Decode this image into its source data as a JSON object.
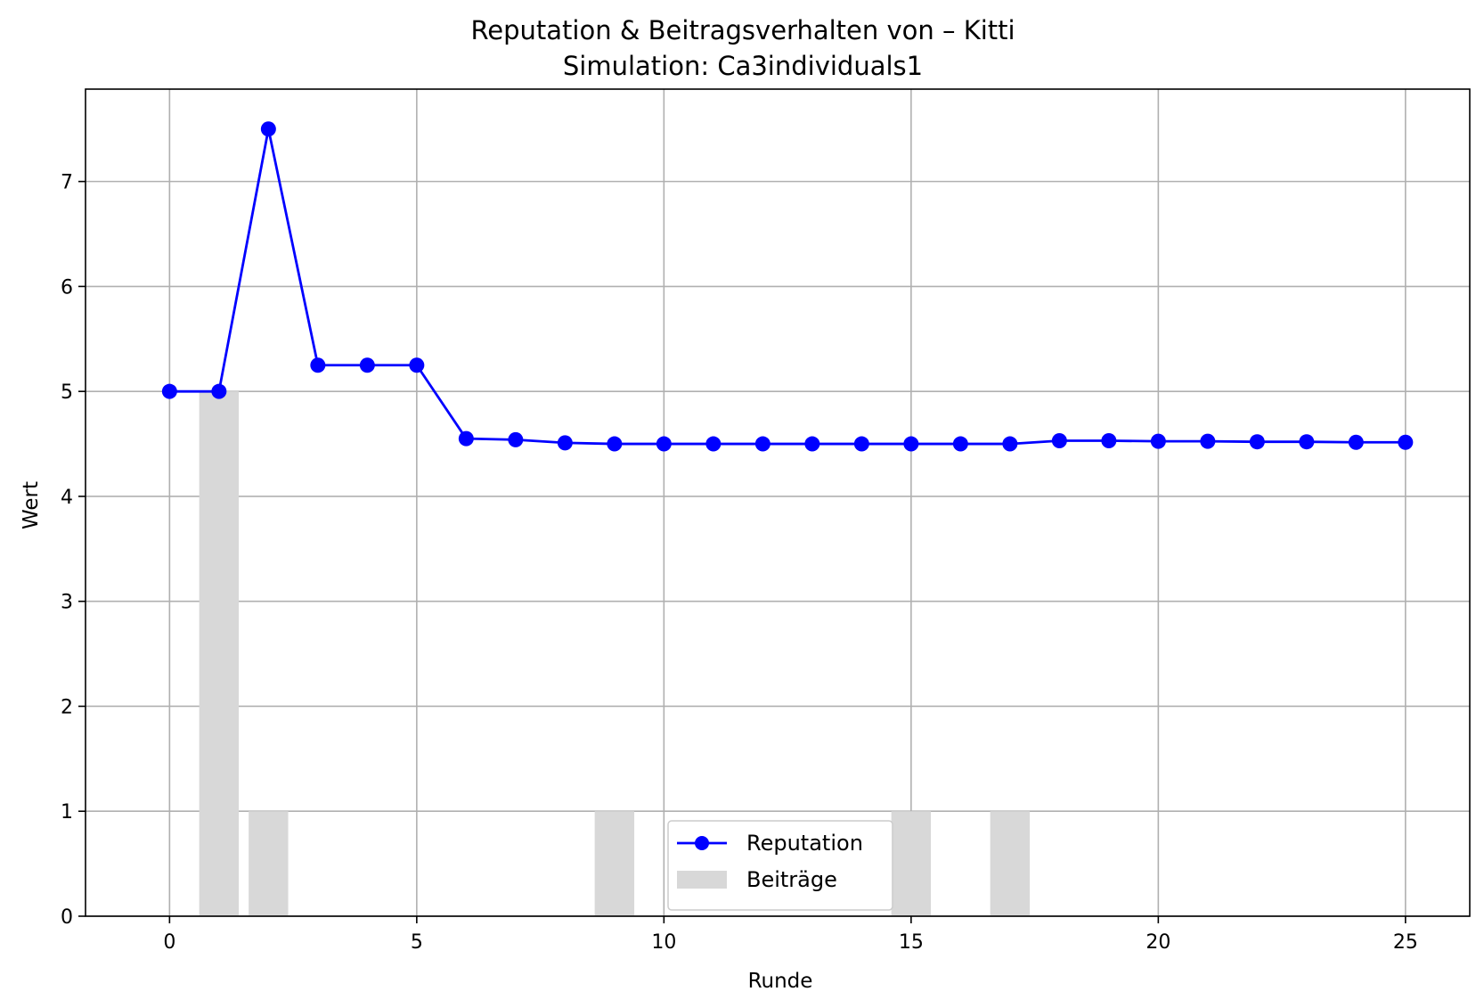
{
  "chart_data": {
    "type": "line",
    "title": "Reputation & Beitragsverhalten von – Kitti",
    "subtitle": "Simulation: Ca3individuals1",
    "xlabel": "Runde",
    "ylabel": "Wert",
    "xlim": [
      -1.7,
      26.3
    ],
    "ylim": [
      0,
      7.88
    ],
    "xticks": [
      0,
      5,
      10,
      15,
      20,
      25
    ],
    "yticks": [
      0,
      1,
      2,
      3,
      4,
      5,
      6,
      7
    ],
    "grid": true,
    "legend_position": "bottom-center",
    "series": [
      {
        "name": "Reputation",
        "kind": "line",
        "color": "#0000ff",
        "marker": "circle",
        "x": [
          0,
          1,
          2,
          3,
          4,
          5,
          6,
          7,
          8,
          9,
          10,
          11,
          12,
          13,
          14,
          15,
          16,
          17,
          18,
          19,
          20,
          21,
          22,
          23,
          24,
          25
        ],
        "values": [
          5.0,
          5.0,
          7.5,
          5.25,
          5.25,
          5.25,
          4.55,
          4.54,
          4.51,
          4.5,
          4.5,
          4.5,
          4.5,
          4.5,
          4.5,
          4.5,
          4.5,
          4.5,
          4.53,
          4.53,
          4.525,
          4.525,
          4.52,
          4.52,
          4.515,
          4.515
        ]
      },
      {
        "name": "Beiträge",
        "kind": "bar",
        "color": "#d8d8d8",
        "x": [
          1,
          2,
          9,
          15,
          17
        ],
        "values": [
          5,
          1,
          1,
          1,
          1
        ]
      }
    ]
  }
}
